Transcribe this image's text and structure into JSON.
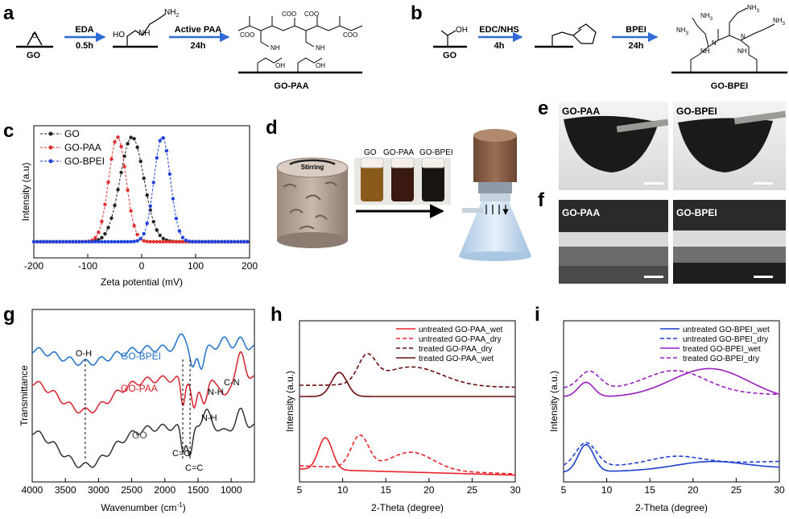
{
  "panels": {
    "a": {
      "label": "a",
      "go_label": "GO",
      "step1_top": "EDA",
      "step1_bottom": "0.5h",
      "step2_top": "Active PAA",
      "step2_bottom": "24h",
      "product_label": "GO-PAA",
      "ho": "HO",
      "nh": "NH",
      "nh2": "NH",
      "nh2_sub": "2",
      "coo": "COO",
      "oh": "OH"
    },
    "b": {
      "label": "b",
      "go_label": "GO",
      "step1_top": "EDC/NHS",
      "step1_bottom": "4h",
      "step2_top": "BPEI",
      "step2_bottom": "24h",
      "product_label": "GO-BPEI",
      "oh": "OH",
      "nh3": "NH",
      "nh3_sub": "3",
      "nh": "NH",
      "n": "N"
    },
    "c": {
      "label": "c"
    },
    "d": {
      "label": "d",
      "stirring": "Stirring",
      "vial_labels": [
        "GO",
        "GO-PAA",
        "GO-BPEI"
      ]
    },
    "e": {
      "label": "e",
      "left": "GO-PAA",
      "right": "GO-BPEI"
    },
    "f": {
      "label": "f",
      "left": "GO-PAA",
      "right": "GO-BPEI"
    },
    "g": {
      "label": "g",
      "annotations": {
        "oh": "O-H",
        "cn": "C-N",
        "nh1": "N-H",
        "nh2": "N-H",
        "co": "C=O",
        "cc": "C=C"
      },
      "series_labels": {
        "gobpei": "GO-BPEI",
        "gopaa": "GO-PAA",
        "go": "GO"
      },
      "series_colors": {
        "gobpei": "#1f6fc8",
        "gopaa": "#d6222d",
        "go": "#333333"
      }
    },
    "h": {
      "label": "h"
    },
    "i": {
      "label": "i"
    }
  },
  "chart_data": [
    {
      "id": "c",
      "type": "scatter",
      "xlabel": "Zeta potential (mV)",
      "ylabel": "Intensity (a.u)",
      "xlim": [
        -200,
        200
      ],
      "xticks": [
        -200,
        -100,
        0,
        100,
        200
      ],
      "legend": "top-left",
      "series": [
        {
          "name": "GO",
          "color": "#222222",
          "style": "dashed-dots",
          "peak_x": -18,
          "width": 22
        },
        {
          "name": "GO-PAA",
          "color": "#e03030",
          "style": "dashed-dots",
          "peak_x": -45,
          "width": 16
        },
        {
          "name": "GO-BPEI",
          "color": "#2244dd",
          "style": "dashed-dots",
          "peak_x": 38,
          "width": 15
        }
      ]
    },
    {
      "id": "g",
      "type": "line",
      "xlabel": "Wavenumber (cm",
      "xlabel_sup": "-1",
      "xlabel_tail": ")",
      "ylabel": "Transmittance",
      "xlim": [
        4000,
        650
      ],
      "xticks": [
        4000,
        3500,
        3000,
        2500,
        2000,
        1500,
        1000
      ],
      "series": [
        {
          "name": "GO-BPEI",
          "color": "#1f6fc8"
        },
        {
          "name": "GO-PAA",
          "color": "#d6222d"
        },
        {
          "name": "GO",
          "color": "#333333"
        }
      ],
      "markers_x": [
        3200,
        1730,
        1620
      ]
    },
    {
      "id": "h",
      "type": "line",
      "xlabel": "2-Theta (degree)",
      "ylabel": "Intensity (a.u.)",
      "xlim": [
        5,
        30
      ],
      "xticks": [
        5,
        10,
        15,
        20,
        25,
        30
      ],
      "legend": "top-right",
      "series": [
        {
          "name": "untreated GO-PAA_wet",
          "color": "#e8242a",
          "dash": false
        },
        {
          "name": "untreated GO-PAA_dry",
          "color": "#e8242a",
          "dash": true
        },
        {
          "name": "treated GO-PAA_dry",
          "color": "#6b0d0d",
          "dash": true
        },
        {
          "name": "treated GO-PAA_wet",
          "color": "#6b0d0d",
          "dash": false
        }
      ]
    },
    {
      "id": "i",
      "type": "line",
      "xlabel": "2-Theta (degree)",
      "ylabel": "Intensity (a.u.)",
      "xlim": [
        5,
        30
      ],
      "xticks": [
        5,
        10,
        15,
        20,
        25,
        30
      ],
      "legend": "top-right",
      "series": [
        {
          "name": "untreated GO-BPEI_wet",
          "color": "#1e3fd0",
          "dash": false
        },
        {
          "name": "untreated GO-BPEI_dry",
          "color": "#1e3fd0",
          "dash": true
        },
        {
          "name": "treated GO-BPEI_wet",
          "color": "#9a1fc0",
          "dash": false
        },
        {
          "name": "treated GO-BPEI_dry",
          "color": "#9a1fc0",
          "dash": true
        }
      ]
    }
  ]
}
